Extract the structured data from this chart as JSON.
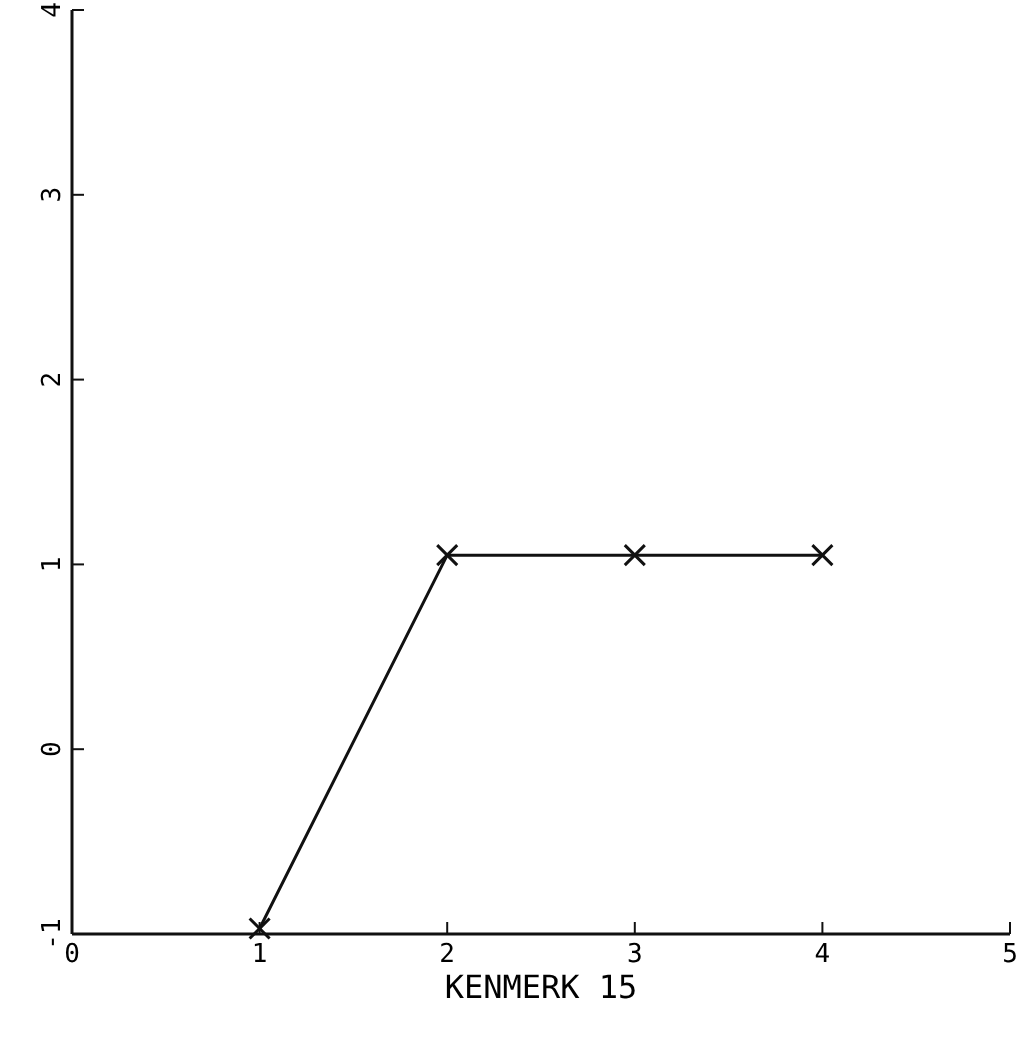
{
  "chart_data": {
    "type": "line",
    "xlabel": "KENMERK 15",
    "x": [
      1,
      2,
      3,
      4
    ],
    "series": [
      {
        "color": "#111111",
        "values": [
          -0.97,
          1.05,
          1.05,
          1.05
        ]
      }
    ],
    "xlim": [
      0,
      5
    ],
    "xticks": [
      0,
      1,
      2,
      3,
      4,
      5
    ],
    "ylim": [
      -1,
      4
    ],
    "yticks": [
      -1,
      0,
      1,
      2,
      3,
      4
    ],
    "grid": false,
    "marker": "cross",
    "line_style": "solid"
  }
}
